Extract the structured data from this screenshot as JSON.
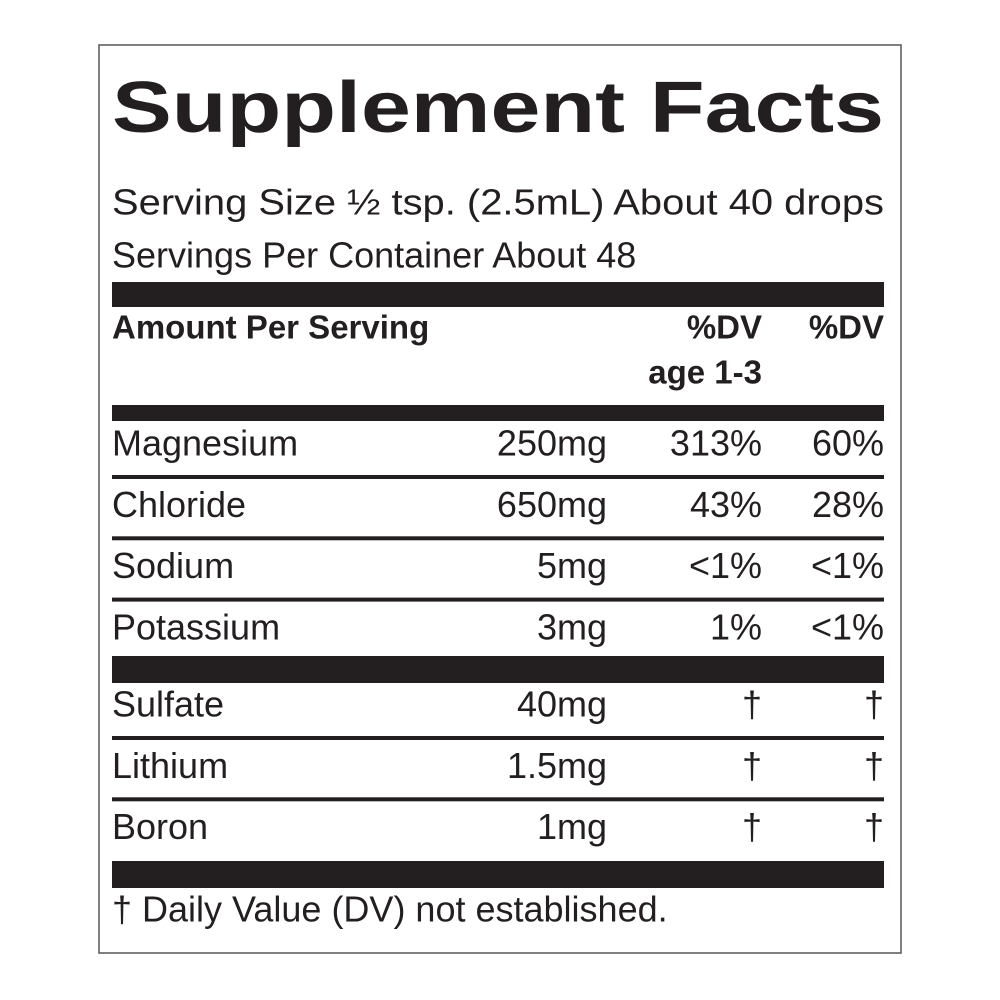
{
  "header": {
    "title": "Supplement Facts",
    "serving_size": "Serving Size ½ tsp. (2.5mL) About 40 drops",
    "servings_per_container": "Servings Per Container About 48"
  },
  "table": {
    "column_headers": {
      "amount": "Amount Per Serving",
      "dv_child": "%DV",
      "dv_child_note": "age 1-3",
      "dv": "%DV"
    },
    "groups": [
      [
        [
          "Magnesium",
          "250mg",
          "313%",
          "60%"
        ],
        [
          "Chloride",
          "650mg",
          "43%",
          "28%"
        ],
        [
          "Sodium",
          "5mg",
          "<1%",
          "<1%"
        ],
        [
          "Potassium",
          "3mg",
          "1%",
          "<1%"
        ]
      ],
      [
        [
          "Sulfate",
          "40mg",
          "†",
          "†"
        ],
        [
          "Lithium",
          "1.5mg",
          "†",
          "†"
        ],
        [
          "Boron",
          "1mg",
          "†",
          "†"
        ]
      ]
    ]
  },
  "footnote": "† Daily Value (DV) not established."
}
